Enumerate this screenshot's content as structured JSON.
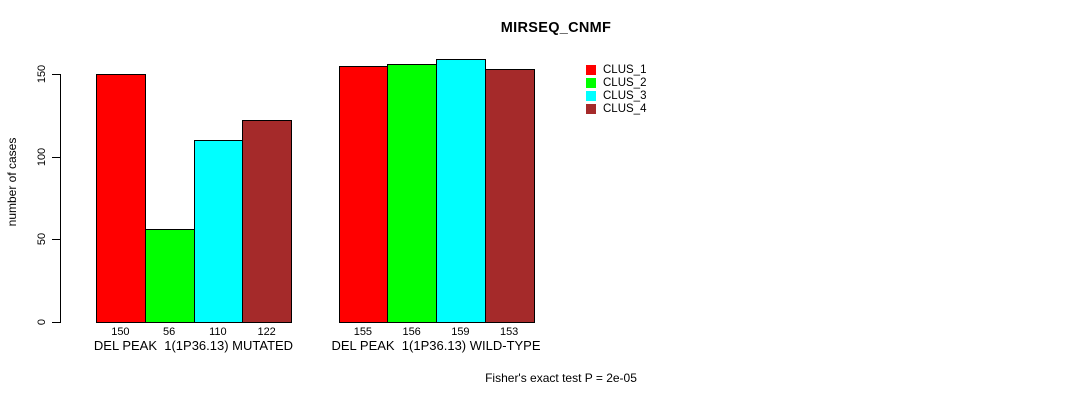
{
  "chart_data": {
    "type": "bar",
    "title": "MIRSEQ_CNMF",
    "ylabel": "number of cases",
    "ylim": [
      0,
      150
    ],
    "yticks": [
      0,
      50,
      100,
      150
    ],
    "categories": [
      "DEL PEAK  1(1P36.13) MUTATED",
      "DEL PEAK  1(1P36.13) WILD-TYPE"
    ],
    "series": [
      {
        "name": "CLUS_1",
        "color": "#ff0000",
        "values": [
          150,
          155
        ]
      },
      {
        "name": "CLUS_2",
        "color": "#00ff00",
        "values": [
          56,
          156
        ]
      },
      {
        "name": "CLUS_3",
        "color": "#00ffff",
        "values": [
          110,
          159
        ]
      },
      {
        "name": "CLUS_4",
        "color": "#a52a2a",
        "values": [
          122,
          153
        ]
      }
    ],
    "bar_value_labels": [
      [
        150,
        56,
        110,
        122
      ],
      [
        155,
        156,
        159,
        153
      ]
    ],
    "legend_position": "right",
    "grid": false,
    "footnote": "Fisher's exact test P = 2e-05"
  }
}
